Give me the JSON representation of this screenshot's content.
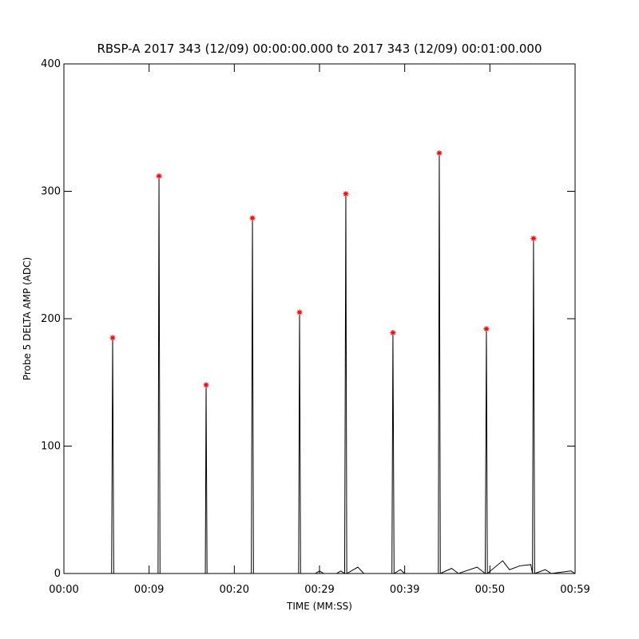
{
  "chart_data": {
    "type": "line",
    "title": "RBSP-A 2017 343 (12/09) 00:00:00.000 to 2017 343 (12/09) 00:01:00.000",
    "x_label": "TIME (MM:SS)",
    "y_label": "Probe 5 DELTA AMP (ADC)",
    "xlim": [
      0,
      60
    ],
    "ylim": [
      0,
      400
    ],
    "xticks": [
      {
        "value": 0,
        "label": "00:00"
      },
      {
        "value": 10,
        "label": "00:09"
      },
      {
        "value": 20,
        "label": "00:20"
      },
      {
        "value": 30,
        "label": "00:29"
      },
      {
        "value": 40,
        "label": "00:39"
      },
      {
        "value": 50,
        "label": "00:50"
      },
      {
        "value": 60,
        "label": "00:59"
      }
    ],
    "yticks": [
      0,
      100,
      200,
      300,
      400
    ],
    "series": [
      {
        "color": "#000000",
        "marker": "none",
        "x": [
          0,
          5.6,
          5.72,
          5.85,
          11.05,
          11.16,
          11.28,
          16.6,
          16.69,
          16.8,
          22.0,
          22.13,
          22.25,
          27.55,
          27.66,
          27.78,
          29.5,
          30,
          30.5,
          32.0,
          32.5,
          32.95,
          33.09,
          33.2,
          34.5,
          35.2,
          38.5,
          38.62,
          38.75,
          39.5,
          40,
          43.95,
          44.06,
          44.18,
          45.5,
          46.3,
          48.5,
          49.45,
          49.59,
          49.7,
          51.5,
          52.3,
          53.5,
          54.8,
          55.0,
          55.12,
          55.25,
          56.5,
          57.2,
          59.5,
          60
        ],
        "values": [
          0,
          0,
          185,
          0,
          0,
          312,
          0,
          0,
          148,
          0,
          0,
          279,
          0,
          0,
          205,
          0,
          0,
          2,
          0,
          0,
          2,
          0,
          298,
          0,
          5,
          0,
          0,
          189,
          0,
          3,
          0,
          0,
          330,
          0,
          4,
          0,
          5,
          0,
          192,
          0,
          10,
          3,
          6,
          7,
          0,
          263,
          0,
          3,
          0,
          2,
          0
        ]
      },
      {
        "color": "#ff0000",
        "marker": "asterisk",
        "x": [
          5.72,
          11.16,
          16.69,
          22.13,
          27.66,
          33.09,
          38.62,
          44.06,
          49.59,
          55.12
        ],
        "values": [
          185,
          312,
          148,
          279,
          205,
          298,
          189,
          330,
          192,
          263
        ]
      }
    ]
  }
}
